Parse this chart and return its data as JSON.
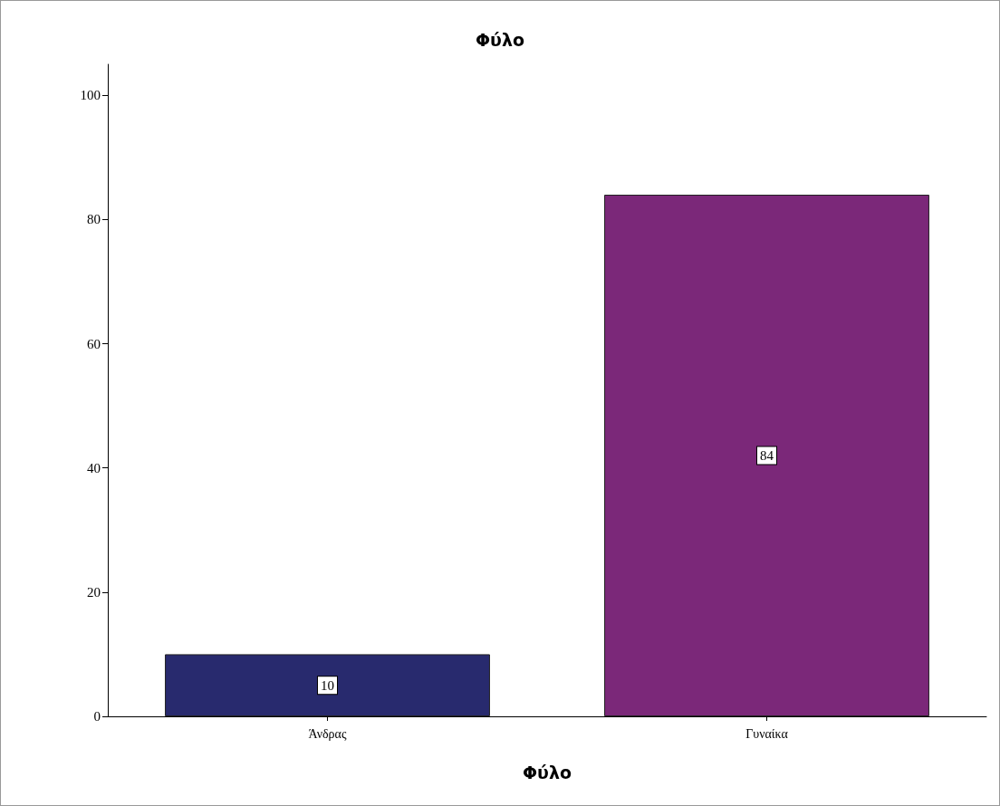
{
  "chart_data": {
    "type": "bar",
    "title": "Φύλο",
    "xlabel": "Φύλο",
    "categories": [
      "Άνδρας",
      "Γυναίκα"
    ],
    "values": [
      10,
      84
    ],
    "colors": [
      "#282a6e",
      "#7b2879"
    ],
    "ylim": [
      0,
      105
    ],
    "yticks": [
      0,
      20,
      40,
      60,
      80,
      100
    ],
    "grid": false,
    "data_labels": true
  }
}
